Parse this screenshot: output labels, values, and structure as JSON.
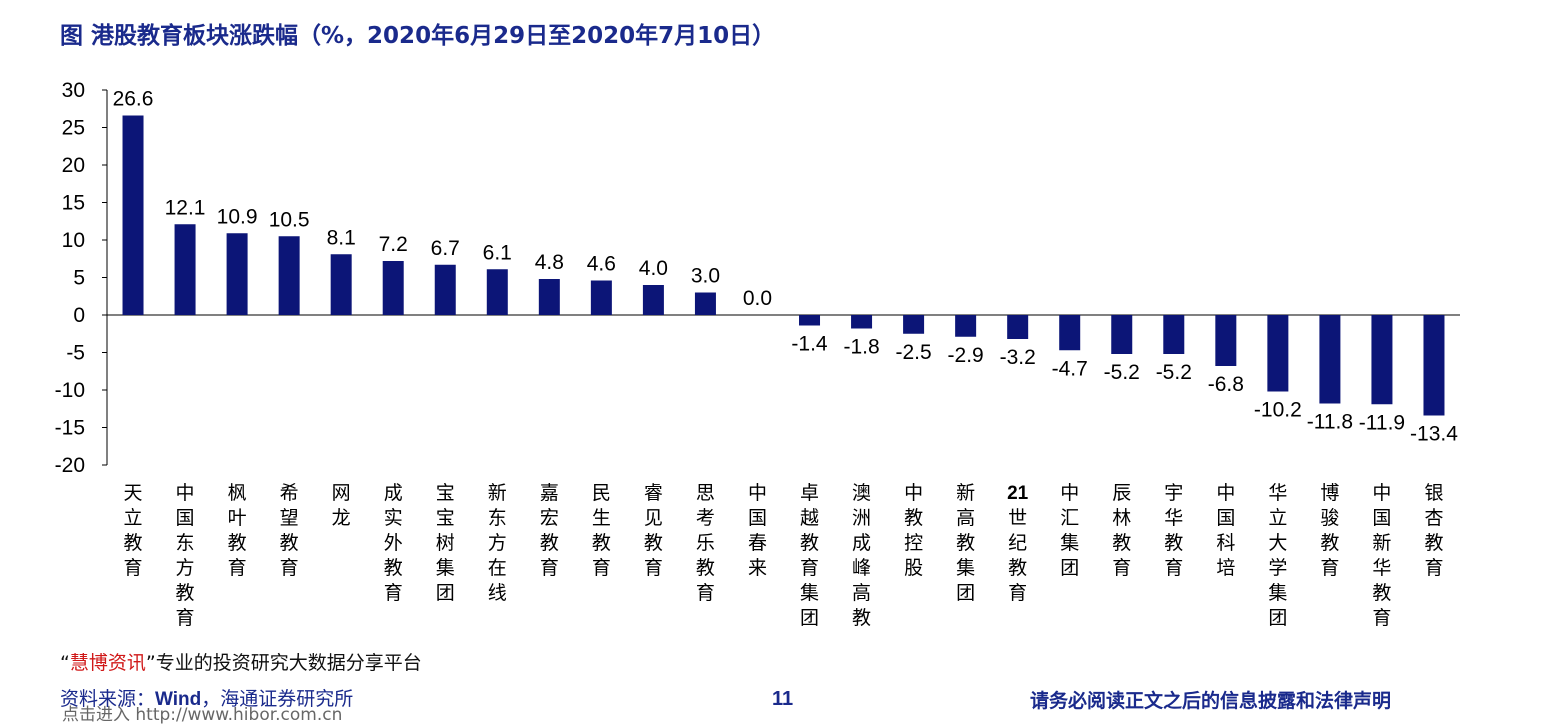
{
  "title": "图  港股教育板块涨跌幅（%，2020年6月29日至2020年7月10日）",
  "chart_data": {
    "type": "bar",
    "ylim": [
      -20,
      30
    ],
    "yticks": [
      30,
      25,
      20,
      15,
      10,
      5,
      0,
      -5,
      -10,
      -15,
      -20
    ],
    "grid": false,
    "bar_color": "#0c1577",
    "categories": [
      "天立教育",
      "中国东方教育",
      "枫叶教育",
      "希望教育",
      "网龙",
      "成实外教育",
      "宝宝树集团",
      "新东方在线",
      "嘉宏教育",
      "民生教育",
      "睿见教育",
      "思考乐教育",
      "中国春来",
      "卓越教育集团",
      "澳洲成峰高教",
      "中教控股",
      "新高教集团",
      "21世纪教育",
      "中汇集团",
      "辰林教育",
      "宇华教育",
      "中国科培",
      "华立大学集团",
      "博骏教育",
      "中国新华教育",
      "银杏教育"
    ],
    "values": [
      26.6,
      12.1,
      10.9,
      10.5,
      8.1,
      7.2,
      6.7,
      6.1,
      4.8,
      4.6,
      4.0,
      3.0,
      0.0,
      -1.4,
      -1.8,
      -2.5,
      -2.9,
      -3.2,
      -4.7,
      -5.2,
      -5.2,
      -6.8,
      -10.2,
      -11.8,
      -11.9,
      -13.4
    ],
    "data_labels": [
      "26.6",
      "12.1",
      "10.9",
      "10.5",
      "8.1",
      "7.2",
      "6.7",
      "6.1",
      "4.8",
      "4.6",
      "4.0",
      "3.0",
      "0.0",
      "-1.4",
      "-1.8",
      "-2.5",
      "-2.9",
      "-3.2",
      "-4.7",
      "-5.2",
      "-5.2",
      "-6.8",
      "-10.2",
      "-11.8",
      "-11.9",
      "-13.4"
    ]
  },
  "footer": {
    "promo_open": "“",
    "promo_brand": "慧博资讯",
    "promo_rest": "”专业的投资研究大数据分享平台",
    "source_prefix": "资料来源：",
    "source_wind": "Wind",
    "source_suffix": "，海通证券研究所",
    "watermark": "点击进入 http://www.hibor.com.cn",
    "page_number": "11",
    "disclaimer": "请务必阅读正文之后的信息披露和法律声明"
  }
}
